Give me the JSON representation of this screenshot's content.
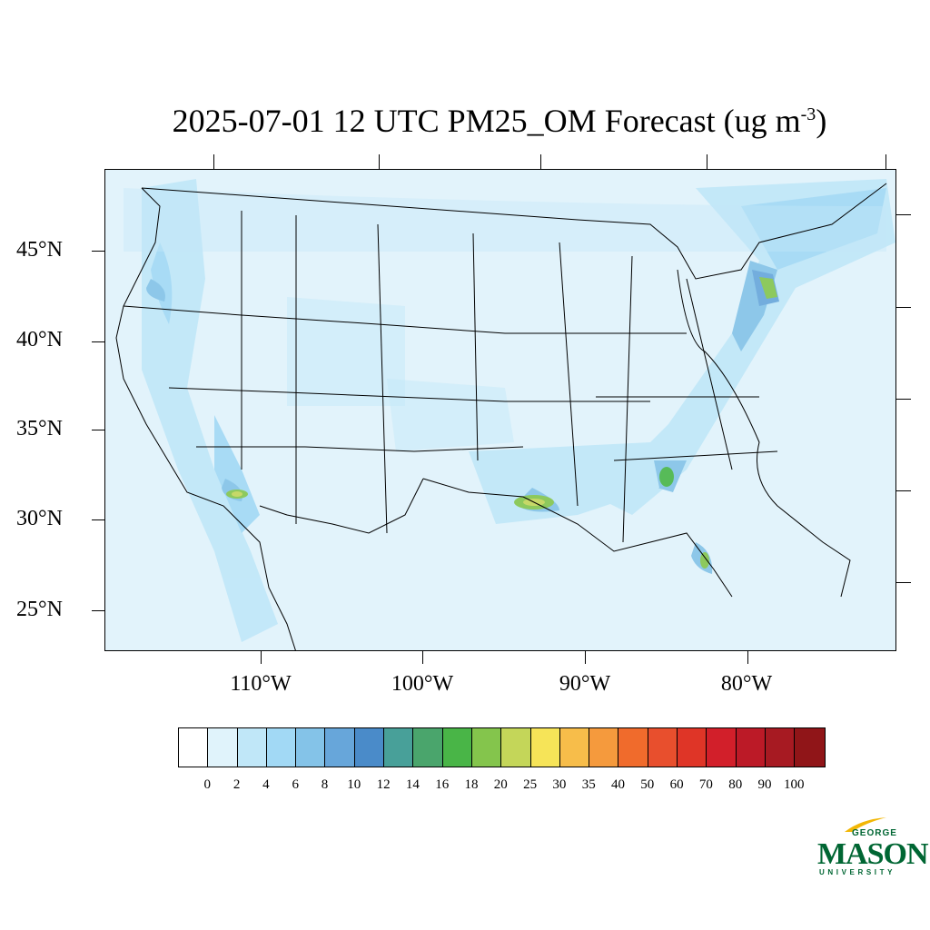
{
  "title": {
    "main": "2025-07-01 12 UTC PM25_OM Forecast (ug m",
    "exponent": "-3",
    "close": ")"
  },
  "map": {
    "lat_labels": [
      "45°N",
      "40°N",
      "35°N",
      "30°N",
      "25°N"
    ],
    "lon_labels": [
      "110°W",
      "100°W",
      "90°W",
      "80°W"
    ],
    "background_color": "#e2f3fb"
  },
  "colorbar": {
    "colors": [
      "#ffffff",
      "#e0f3fb",
      "#c0e7f8",
      "#a2d9f5",
      "#84c3e8",
      "#67a6da",
      "#4a8bc9",
      "#48a099",
      "#4aa56c",
      "#49b547",
      "#84c54c",
      "#c4d659",
      "#f6e458",
      "#f7bd4a",
      "#f59a3d",
      "#f06b2c",
      "#e84f2d",
      "#df3527",
      "#d21f2a",
      "#bc1a27",
      "#a71a22",
      "#901518"
    ],
    "labels": [
      "0",
      "2",
      "4",
      "6",
      "8",
      "10",
      "12",
      "14",
      "16",
      "18",
      "20",
      "25",
      "30",
      "35",
      "40",
      "50",
      "60",
      "70",
      "80",
      "90",
      "100"
    ]
  },
  "logo": {
    "line1": "GEORGE",
    "line2": "MASON",
    "line3": "UNIVERSITY",
    "color": "#006633",
    "accent": "#f2b705"
  }
}
